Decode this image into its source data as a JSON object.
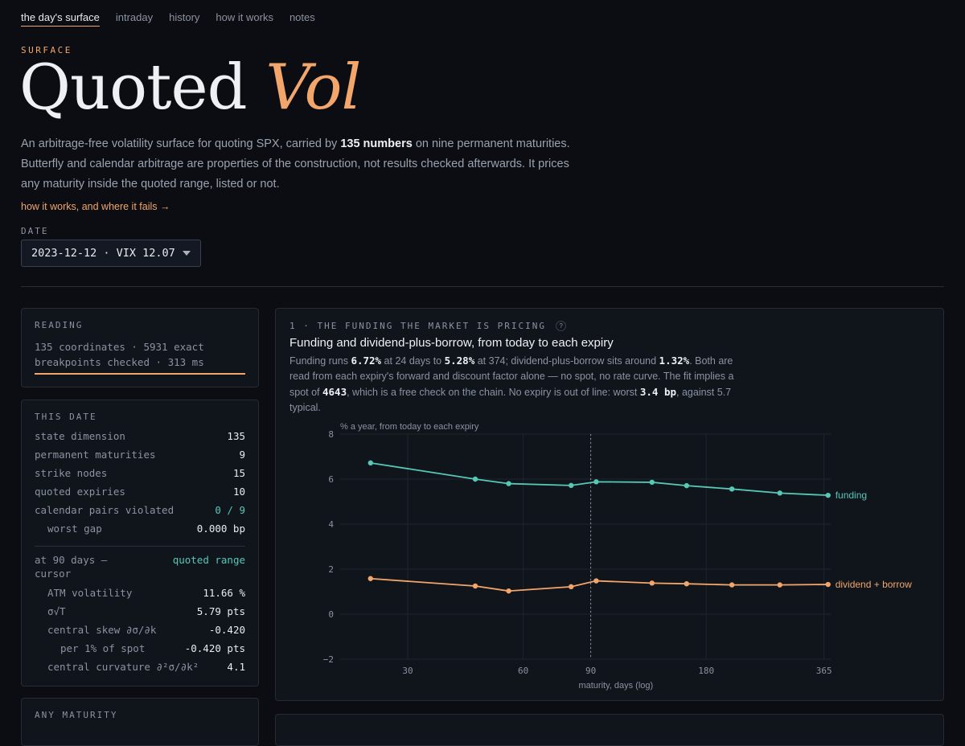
{
  "nav": {
    "items": [
      "the day's surface",
      "intraday",
      "history",
      "how it works",
      "notes"
    ]
  },
  "hero": {
    "eyebrow": "SURFACE",
    "title_main": "Quoted",
    "title_accent": "Vol",
    "lede_1": "An arbitrage-free volatility surface for quoting SPX, carried by ",
    "lede_bold": "135 numbers",
    "lede_2": " on nine permanent maturities. Butterfly and calendar arbitrage are properties of the construction, not results checked afterwards. It prices any maturity inside the quoted range, listed or not.",
    "link": "how it works, and where it fails →"
  },
  "date": {
    "label": "DATE",
    "value": "2023-12-12 · VIX 12.07"
  },
  "reading": {
    "heading": "READING",
    "line1": "135 coordinates · 5931 exact",
    "line2": "breakpoints checked · 313 ms"
  },
  "this_date": {
    "heading": "THIS DATE",
    "rows": [
      {
        "k": "state dimension",
        "v": "135"
      },
      {
        "k": "permanent maturities",
        "v": "9"
      },
      {
        "k": "strike nodes",
        "v": "15"
      },
      {
        "k": "quoted expiries",
        "v": "10"
      },
      {
        "k": "calendar pairs violated",
        "v": "0 / 9"
      },
      {
        "k": "worst gap",
        "v": "0.000 bp"
      }
    ],
    "cursor_k": "at 90 days —",
    "cursor_k2": "cursor",
    "cursor_v": "quoted range",
    "cursor_rows": [
      {
        "k": "ATM volatility",
        "v": "11.66 %"
      },
      {
        "k": "σ√T",
        "v": "5.79 pts"
      },
      {
        "k": "central skew ∂σ/∂k",
        "v": "-0.420"
      },
      {
        "k": "per 1% of spot",
        "v": "-0.420 pts"
      },
      {
        "k": "central curvature ∂²σ/∂k²",
        "v": "4.1"
      }
    ]
  },
  "any_maturity": {
    "heading": "ANY MATURITY"
  },
  "panel": {
    "heading": "1 · THE FUNDING THE MARKET IS PRICING",
    "help": "?",
    "title": "Funding and dividend-plus-borrow, from today to each expiry",
    "d1": "Funding runs ",
    "d1b": "6.72%",
    "d2": " at 24 days to ",
    "d2b": "5.28%",
    "d3": " at 374; dividend-plus-borrow sits around ",
    "d3b": "1.32%",
    "d4": ". Both are read from each expiry's forward and discount factor alone — no spot, no rate curve. The fit implies a spot of ",
    "d4b": "4643",
    "d5": ", which is a free check on the chain. No expiry is out of line: worst ",
    "d5b": "3.4 bp",
    "d6": ", against 5.7 typical."
  },
  "chart_data": {
    "type": "line",
    "ylabel": "% a year, from today to each expiry",
    "xlabel": "maturity, days (log)",
    "x_scale": "log",
    "xlim": [
      20,
      380
    ],
    "ylim": [
      -2,
      8
    ],
    "x_ticks": [
      30,
      60,
      90,
      180,
      365
    ],
    "y_ticks": [
      8,
      6,
      4,
      2,
      0,
      -2
    ],
    "cursor_x": 90,
    "grid": true,
    "series": [
      {
        "name": "funding",
        "color": "#56c8b6",
        "x": [
          24,
          45,
          55,
          80,
          93,
          130,
          160,
          210,
          280,
          374
        ],
        "y": [
          6.72,
          6.0,
          5.8,
          5.72,
          5.88,
          5.86,
          5.71,
          5.56,
          5.38,
          5.28
        ]
      },
      {
        "name": "dividend + borrow",
        "color": "#f2a66b",
        "x": [
          24,
          45,
          55,
          80,
          93,
          130,
          160,
          210,
          280,
          374
        ],
        "y": [
          1.58,
          1.25,
          1.03,
          1.22,
          1.48,
          1.38,
          1.35,
          1.3,
          1.3,
          1.32
        ]
      }
    ]
  }
}
